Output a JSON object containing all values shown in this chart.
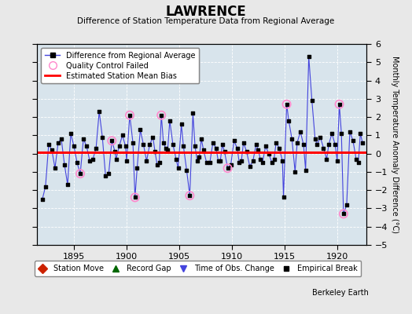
{
  "title": "LAWRENCE",
  "subtitle": "Difference of Station Temperature Data from Regional Average",
  "ylabel": "Monthly Temperature Anomaly Difference (°C)",
  "berkeley_earth": "Berkeley Earth",
  "xlim": [
    1891.5,
    1922.8
  ],
  "ylim": [
    -5,
    6
  ],
  "yticks": [
    -5,
    -4,
    -3,
    -2,
    -1,
    0,
    1,
    2,
    3,
    4,
    5,
    6
  ],
  "xticks": [
    1895,
    1900,
    1905,
    1910,
    1915,
    1920
  ],
  "bias": 0.05,
  "fig_bg_color": "#e8e8e8",
  "plot_bg_color": "#d8e4ec",
  "line_color": "#4444dd",
  "marker_color": "black",
  "bias_color": "red",
  "qc_color": "#ff88cc",
  "time_series": [
    [
      1892.0,
      -2.5
    ],
    [
      1892.3,
      -1.8
    ],
    [
      1892.6,
      0.5
    ],
    [
      1892.9,
      0.2
    ],
    [
      1893.2,
      -0.8
    ],
    [
      1893.5,
      0.6
    ],
    [
      1893.8,
      0.8
    ],
    [
      1894.1,
      -0.6
    ],
    [
      1894.4,
      -1.7
    ],
    [
      1894.7,
      1.1
    ],
    [
      1895.0,
      0.4
    ],
    [
      1895.3,
      -0.5
    ],
    [
      1895.6,
      -1.1
    ],
    [
      1895.9,
      0.8
    ],
    [
      1896.2,
      0.4
    ],
    [
      1896.5,
      -0.4
    ],
    [
      1896.8,
      -0.3
    ],
    [
      1897.1,
      0.3
    ],
    [
      1897.4,
      2.3
    ],
    [
      1897.7,
      0.9
    ],
    [
      1898.0,
      -1.2
    ],
    [
      1898.3,
      -1.1
    ],
    [
      1898.6,
      0.7
    ],
    [
      1898.9,
      0.1
    ],
    [
      1899.0,
      -0.3
    ],
    [
      1899.3,
      0.4
    ],
    [
      1899.6,
      1.0
    ],
    [
      1899.9,
      0.4
    ],
    [
      1900.0,
      -0.4
    ],
    [
      1900.3,
      2.1
    ],
    [
      1900.6,
      0.6
    ],
    [
      1900.8,
      -2.4
    ],
    [
      1901.0,
      -0.8
    ],
    [
      1901.3,
      1.3
    ],
    [
      1901.6,
      0.5
    ],
    [
      1901.9,
      -0.4
    ],
    [
      1902.2,
      0.5
    ],
    [
      1902.5,
      0.9
    ],
    [
      1902.7,
      0.1
    ],
    [
      1902.9,
      -0.6
    ],
    [
      1903.1,
      -0.5
    ],
    [
      1903.3,
      2.1
    ],
    [
      1903.5,
      0.6
    ],
    [
      1903.7,
      0.3
    ],
    [
      1903.9,
      0.2
    ],
    [
      1904.1,
      1.8
    ],
    [
      1904.4,
      0.5
    ],
    [
      1904.7,
      -0.3
    ],
    [
      1904.9,
      -0.8
    ],
    [
      1905.2,
      1.6
    ],
    [
      1905.4,
      0.4
    ],
    [
      1905.7,
      -0.9
    ],
    [
      1906.0,
      -2.3
    ],
    [
      1906.3,
      2.2
    ],
    [
      1906.5,
      0.4
    ],
    [
      1906.7,
      -0.4
    ],
    [
      1906.9,
      -0.2
    ],
    [
      1907.1,
      0.8
    ],
    [
      1907.3,
      0.2
    ],
    [
      1907.6,
      -0.5
    ],
    [
      1907.9,
      -0.5
    ],
    [
      1908.2,
      0.6
    ],
    [
      1908.5,
      0.3
    ],
    [
      1908.7,
      -0.4
    ],
    [
      1908.9,
      -0.4
    ],
    [
      1909.1,
      0.5
    ],
    [
      1909.3,
      0.1
    ],
    [
      1909.6,
      -0.8
    ],
    [
      1909.9,
      -0.6
    ],
    [
      1910.2,
      0.7
    ],
    [
      1910.5,
      0.3
    ],
    [
      1910.7,
      -0.5
    ],
    [
      1910.9,
      -0.4
    ],
    [
      1911.1,
      0.6
    ],
    [
      1911.4,
      0.1
    ],
    [
      1911.7,
      -0.7
    ],
    [
      1912.0,
      -0.4
    ],
    [
      1912.3,
      0.5
    ],
    [
      1912.5,
      0.2
    ],
    [
      1912.7,
      -0.3
    ],
    [
      1912.9,
      -0.5
    ],
    [
      1913.2,
      0.4
    ],
    [
      1913.5,
      0.0
    ],
    [
      1913.8,
      -0.5
    ],
    [
      1914.0,
      -0.3
    ],
    [
      1914.2,
      0.6
    ],
    [
      1914.5,
      0.3
    ],
    [
      1914.8,
      -0.4
    ],
    [
      1914.9,
      -2.4
    ],
    [
      1915.2,
      2.7
    ],
    [
      1915.4,
      1.8
    ],
    [
      1915.7,
      0.8
    ],
    [
      1916.0,
      -1.0
    ],
    [
      1916.2,
      0.6
    ],
    [
      1916.5,
      1.2
    ],
    [
      1916.8,
      0.5
    ],
    [
      1917.0,
      -0.9
    ],
    [
      1917.3,
      5.3
    ],
    [
      1917.6,
      2.9
    ],
    [
      1917.9,
      0.8
    ],
    [
      1918.1,
      0.5
    ],
    [
      1918.4,
      0.9
    ],
    [
      1918.7,
      0.3
    ],
    [
      1919.0,
      -0.3
    ],
    [
      1919.2,
      0.5
    ],
    [
      1919.5,
      1.1
    ],
    [
      1919.8,
      0.5
    ],
    [
      1920.0,
      -0.4
    ],
    [
      1920.2,
      2.7
    ],
    [
      1920.4,
      1.1
    ],
    [
      1920.6,
      -3.3
    ],
    [
      1920.9,
      -2.8
    ],
    [
      1921.2,
      1.2
    ],
    [
      1921.5,
      0.7
    ],
    [
      1921.8,
      -0.3
    ],
    [
      1922.0,
      -0.5
    ],
    [
      1922.2,
      1.1
    ],
    [
      1922.4,
      0.6
    ]
  ],
  "qc_failed": [
    [
      1895.6,
      -1.1
    ],
    [
      1898.6,
      0.7
    ],
    [
      1900.3,
      2.1
    ],
    [
      1900.8,
      -2.4
    ],
    [
      1903.3,
      2.1
    ],
    [
      1906.0,
      -2.3
    ],
    [
      1909.6,
      -0.8
    ],
    [
      1915.2,
      2.7
    ],
    [
      1920.2,
      2.7
    ],
    [
      1920.6,
      -3.3
    ]
  ],
  "legend1_labels": [
    "Difference from Regional Average",
    "Quality Control Failed",
    "Estimated Station Mean Bias"
  ],
  "legend2_labels": [
    "Station Move",
    "Record Gap",
    "Time of Obs. Change",
    "Empirical Break"
  ]
}
